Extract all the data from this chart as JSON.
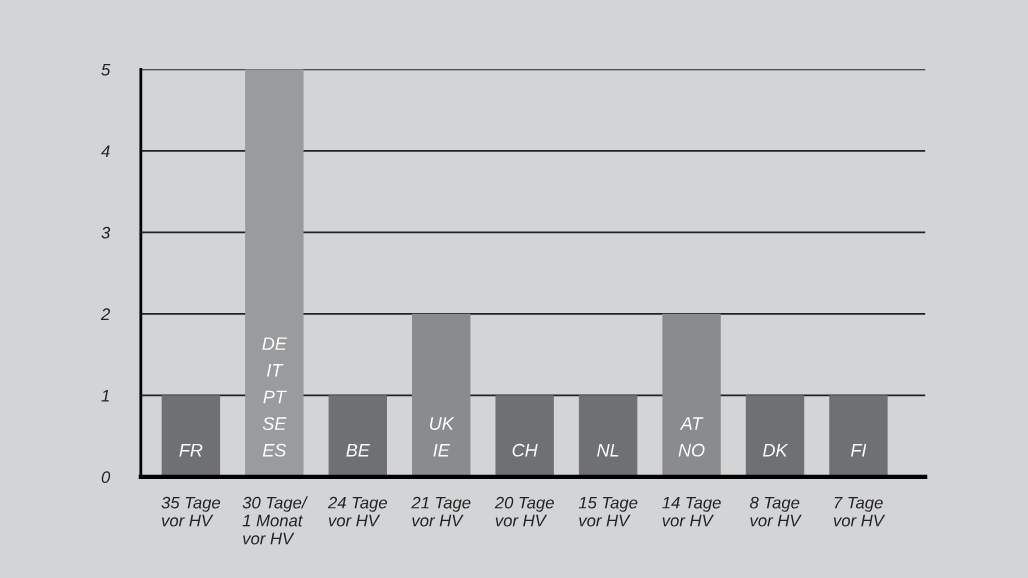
{
  "chart_data": {
    "type": "bar",
    "categories": [
      "35 Tage\nvor HV",
      "30 Tage/\n1 Monat\nvor HV",
      "24 Tage\nvor HV",
      "21 Tage\nvor HV",
      "20 Tage\nvor HV",
      "15 Tage\nvor HV",
      "14 Tage\nvor HV",
      "8 Tage\nvor HV",
      "7 Tage\nvor HV"
    ],
    "values": [
      1,
      5,
      1,
      2,
      1,
      1,
      2,
      1,
      1
    ],
    "colors": [
      "#6f7073",
      "#9a9b9d",
      "#6f7073",
      "#8a8b8d",
      "#6f7073",
      "#6f7073",
      "#8a8b8d",
      "#6f7073",
      "#6f7073"
    ],
    "ylim": [
      0,
      5
    ],
    "yticks": [
      0,
      1,
      2,
      3,
      4,
      5
    ],
    "grid": "y",
    "annotations": [
      {
        "text": "FR",
        "x": "35 Tage\nvor HV",
        "y": 0
      },
      {
        "text": "DE\nIT\nPT\nSE\nES",
        "x": "30 Tage/\n1 Monat\nvor HV",
        "y": 0
      },
      {
        "text": "BE",
        "x": "24 Tage\nvor HV",
        "y": 0
      },
      {
        "text": "UK\nIE",
        "x": "21 Tage\nvor HV",
        "y": 0
      },
      {
        "text": "CH",
        "x": "20 Tage\nvor HV",
        "y": 0
      },
      {
        "text": "NL",
        "x": "15 Tage\nvor HV",
        "y": 0
      },
      {
        "text": "AT\nNO",
        "x": "14 Tage\nvor HV",
        "y": 0
      },
      {
        "text": "DK",
        "x": "8 Tage\nvor HV",
        "y": 0
      },
      {
        "text": "FI",
        "x": "7 Tage\nvor HV",
        "y": 0
      }
    ]
  }
}
